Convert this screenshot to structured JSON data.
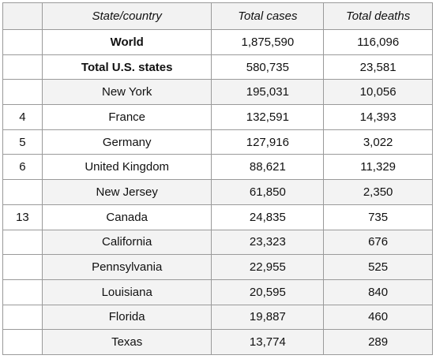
{
  "table": {
    "header": [
      "State/country",
      "Total cases",
      "Total deaths"
    ],
    "rows": [
      {
        "name": "World",
        "cases": "1,875,590",
        "deaths": "116,096",
        "bold": true
      },
      {
        "name": "Total U.S. states",
        "cases": "580,735",
        "deaths": "23,581",
        "bold": true
      },
      {
        "name": "New York",
        "cases": "195,031",
        "deaths": "10,056",
        "shaded": true
      },
      {
        "rank": "4",
        "name": "France",
        "cases": "132,591",
        "deaths": "14,393"
      },
      {
        "rank": "5",
        "name": "Germany",
        "cases": "127,916",
        "deaths": "3,022"
      },
      {
        "rank": "6",
        "name": "United Kingdom",
        "cases": "88,621",
        "deaths": "11,329"
      },
      {
        "name": "New Jersey",
        "cases": "61,850",
        "deaths": "2,350",
        "shaded": true
      },
      {
        "rank": "13",
        "name": "Canada",
        "cases": "24,835",
        "deaths": "735"
      },
      {
        "name": "California",
        "cases": "23,323",
        "deaths": "676",
        "shaded": true
      },
      {
        "name": "Pennsylvania",
        "cases": "22,955",
        "deaths": "525",
        "shaded": true
      },
      {
        "name": "Louisiana",
        "cases": "20,595",
        "deaths": "840",
        "shaded": true
      },
      {
        "name": "Florida",
        "cases": "19,887",
        "deaths": "460",
        "shaded": true
      },
      {
        "name": "Texas",
        "cases": "13,774",
        "deaths": "289",
        "shaded": true
      }
    ]
  }
}
